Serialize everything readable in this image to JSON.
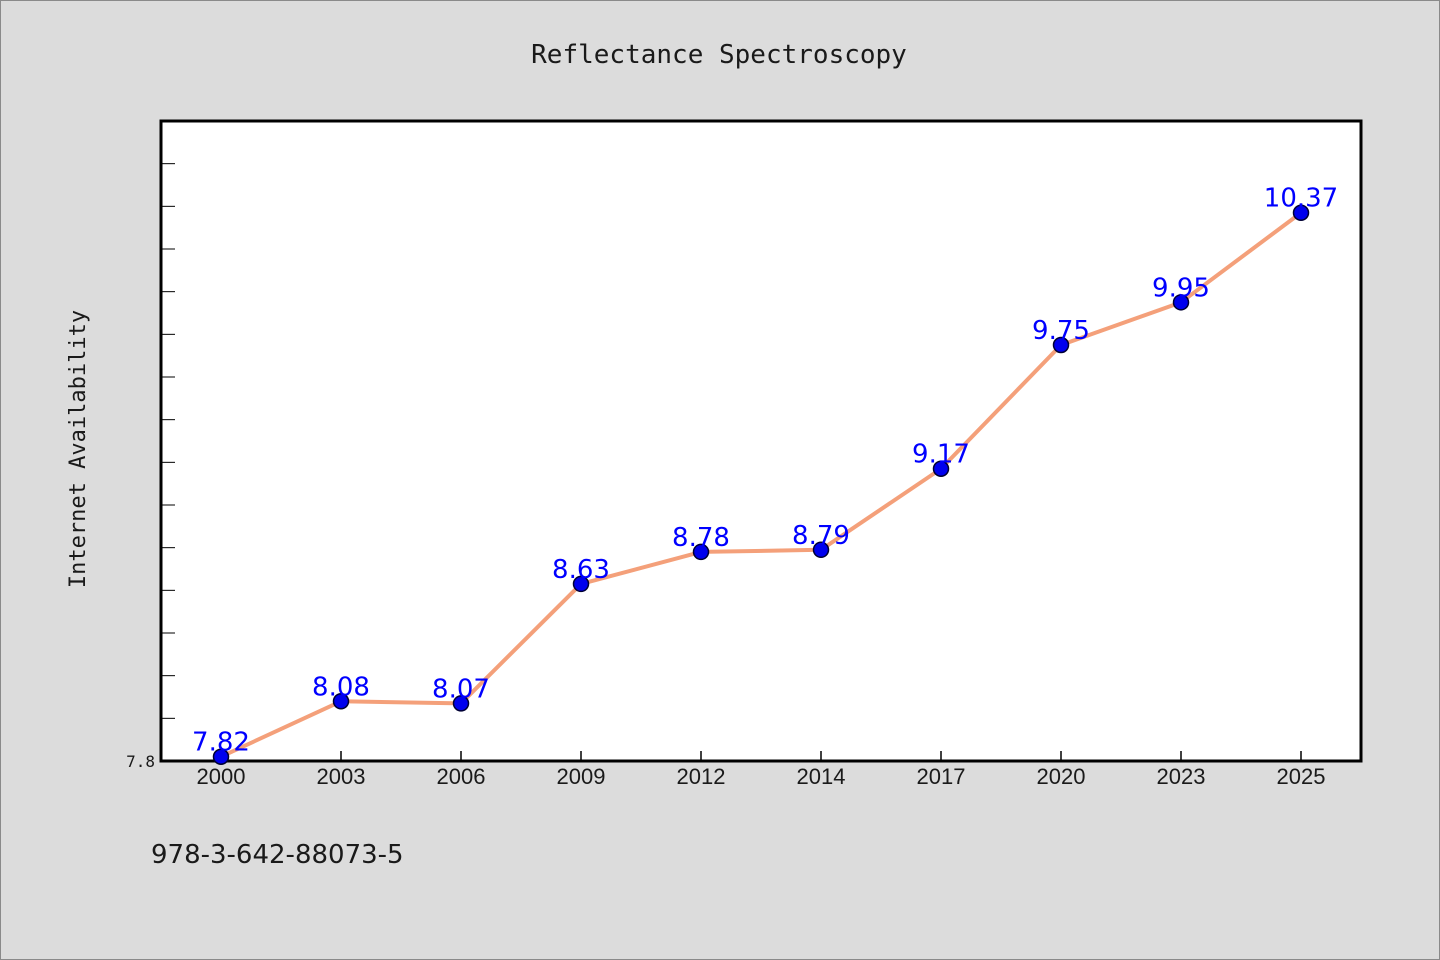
{
  "chart_data": {
    "type": "line",
    "title": "Reflectance Spectroscopy",
    "xlabel": "",
    "ylabel": "Internet Availability",
    "categories": [
      "2000",
      "2003",
      "2006",
      "2009",
      "2012",
      "2014",
      "2017",
      "2020",
      "2023",
      "2025"
    ],
    "series": [
      {
        "values": [
          7.82,
          8.08,
          8.07,
          8.63,
          8.78,
          8.79,
          9.17,
          9.75,
          9.95,
          10.37
        ],
        "data_labels": [
          "7.82",
          "8.08",
          "8.07",
          "8.63",
          "8.78",
          "8.79",
          "9.17",
          "9.75",
          "9.95",
          "10.37"
        ]
      }
    ],
    "ylim": [
      7.8,
      10.8
    ],
    "yticks": [
      {
        "value": 7.8,
        "label": "7.8"
      }
    ],
    "grid": false,
    "legend": "none",
    "colors": {
      "line": "#f4a07a",
      "marker": "#0000ee",
      "label": "#0000ff"
    }
  },
  "footer": {
    "text": "978-3-642-88073-5"
  }
}
